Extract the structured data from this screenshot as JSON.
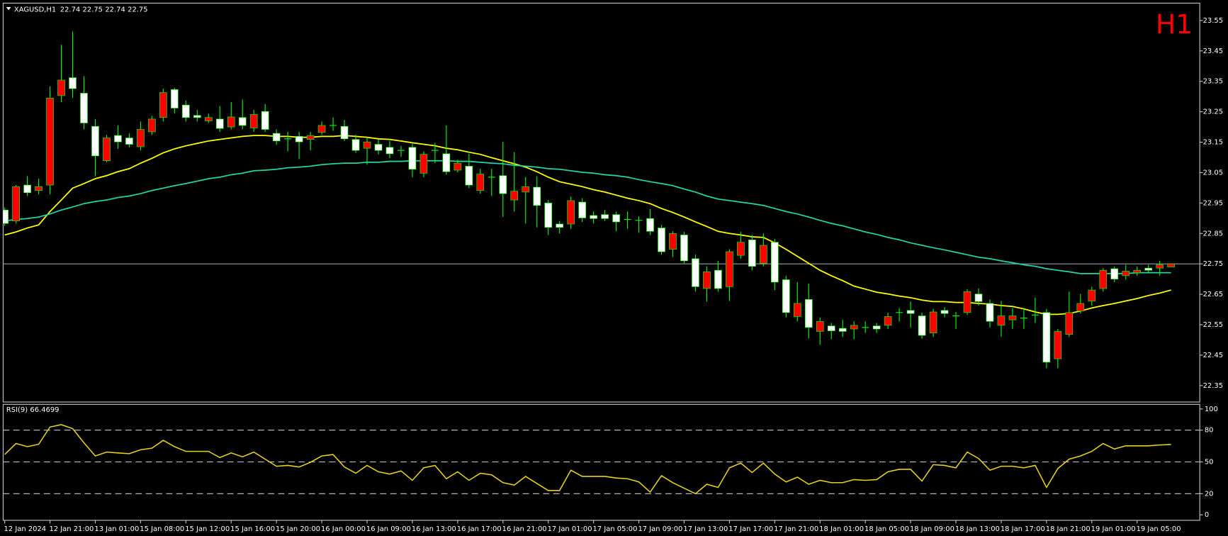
{
  "chart_data": {
    "type": "candlestick",
    "symbol": "XAGUSD,H1",
    "timeframe_label": "H1",
    "categories": [
      "12 Jan 2024",
      null,
      null,
      null,
      "12 Jan 21:00",
      null,
      null,
      null,
      "13 Jan 01:00",
      null,
      null,
      null,
      "15 Jan 08:00",
      null,
      null,
      null,
      "15 Jan 12:00",
      null,
      null,
      null,
      "15 Jan 16:00",
      null,
      null,
      null,
      "15 Jan 20:00",
      null,
      null,
      null,
      "16 Jan 00:00",
      null,
      null,
      null,
      "16 Jan 09:00",
      null,
      null,
      null,
      "16 Jan 13:00",
      null,
      null,
      null,
      "16 Jan 17:00",
      null,
      null,
      null,
      "16 Jan 21:00",
      null,
      null,
      null,
      "17 Jan 01:00",
      null,
      null,
      null,
      "17 Jan 05:00",
      null,
      null,
      null,
      "17 Jan 09:00",
      null,
      null,
      null,
      "17 Jan 13:00",
      null,
      null,
      null,
      "17 Jan 17:00",
      null,
      null,
      null,
      "17 Jan 21:00",
      null,
      null,
      null,
      "18 Jan 01:00",
      null,
      null,
      null,
      "18 Jan 05:00",
      null,
      null,
      null,
      "18 Jan 09:00",
      null,
      null,
      null,
      "18 Jan 13:00",
      null,
      null,
      null,
      "18 Jan 17:00",
      null,
      null,
      null,
      "18 Jan 21:00",
      null,
      null,
      null,
      "19 Jan 01:00",
      null,
      null,
      null,
      "19 Jan 05:00",
      null,
      null,
      null
    ],
    "open": [
      22.927,
      22.891,
      23.009,
      22.991,
      23.009,
      23.303,
      23.362,
      23.311,
      23.202,
      23.089,
      23.172,
      23.164,
      23.135,
      23.184,
      23.231,
      23.323,
      23.272,
      23.238,
      23.22,
      23.226,
      23.2,
      23.231,
      23.197,
      23.251,
      23.179,
      23.161,
      23.169,
      23.159,
      23.182,
      23.205,
      23.202,
      23.159,
      23.13,
      23.143,
      23.133,
      23.123,
      23.133,
      23.048,
      23.123,
      23.112,
      23.058,
      23.071,
      22.991,
      23.035,
      23.04,
      22.96,
      22.986,
      23.002,
      22.95,
      22.881,
      22.881,
      22.953,
      22.909,
      22.912,
      22.912,
      22.896,
      22.893,
      22.899,
      22.868,
      22.798,
      22.845,
      22.767,
      22.669,
      22.729,
      22.675,
      22.778,
      22.829,
      22.752,
      22.821,
      22.698,
      22.577,
      22.633,
      22.528,
      22.546,
      22.538,
      22.536,
      22.541,
      22.546,
      22.548,
      22.59,
      22.597,
      22.579,
      22.523,
      22.597,
      22.579,
      22.59,
      22.651,
      22.62,
      22.548,
      22.566,
      22.572,
      22.582,
      22.59,
      22.438,
      22.518,
      22.595,
      22.628,
      22.669,
      22.734,
      22.711,
      22.721,
      22.736,
      22.736,
      22.74
    ],
    "high": [
      22.935,
      23.009,
      23.038,
      23.03,
      23.334,
      23.47,
      23.514,
      23.367,
      23.226,
      23.174,
      23.205,
      23.179,
      23.218,
      23.236,
      23.326,
      23.329,
      23.287,
      23.256,
      23.244,
      23.269,
      23.282,
      23.29,
      23.256,
      23.275,
      23.192,
      23.184,
      23.184,
      23.184,
      23.218,
      23.231,
      23.223,
      23.174,
      23.166,
      23.159,
      23.154,
      23.138,
      23.146,
      23.12,
      23.148,
      23.205,
      23.092,
      23.112,
      23.063,
      23.063,
      23.151,
      23.117,
      23.035,
      23.038,
      22.96,
      22.891,
      22.971,
      22.966,
      22.922,
      22.927,
      22.922,
      22.922,
      22.906,
      22.93,
      22.878,
      22.857,
      22.855,
      22.78,
      22.742,
      22.76,
      22.798,
      22.855,
      22.845,
      22.85,
      22.832,
      22.711,
      22.69,
      22.685,
      22.574,
      22.556,
      22.566,
      22.561,
      22.561,
      22.556,
      22.59,
      22.605,
      22.626,
      22.59,
      22.602,
      22.608,
      22.592,
      22.667,
      22.669,
      22.633,
      22.628,
      22.605,
      22.602,
      22.639,
      22.602,
      22.536,
      22.659,
      22.651,
      22.675,
      22.736,
      22.742,
      22.747,
      22.742,
      22.747,
      22.76,
      22.75
    ],
    "low": [
      22.875,
      22.883,
      22.973,
      22.978,
      22.978,
      23.282,
      23.295,
      23.192,
      23.038,
      23.084,
      23.128,
      23.133,
      23.123,
      23.174,
      23.218,
      23.244,
      23.218,
      23.218,
      23.213,
      23.184,
      23.192,
      23.192,
      23.184,
      23.184,
      23.141,
      23.12,
      23.094,
      23.123,
      23.174,
      23.187,
      23.154,
      23.115,
      23.076,
      23.11,
      23.097,
      23.102,
      23.035,
      23.035,
      23.081,
      23.043,
      23.051,
      22.999,
      22.981,
      22.973,
      22.904,
      22.922,
      22.883,
      22.87,
      22.845,
      22.85,
      22.865,
      22.888,
      22.883,
      22.891,
      22.857,
      22.865,
      22.852,
      22.845,
      22.78,
      22.772,
      22.752,
      22.659,
      22.626,
      22.659,
      22.628,
      22.767,
      22.729,
      22.742,
      22.664,
      22.574,
      22.561,
      22.505,
      22.484,
      22.502,
      22.51,
      22.502,
      22.523,
      22.523,
      22.536,
      22.561,
      22.541,
      22.505,
      22.51,
      22.574,
      22.536,
      22.582,
      22.613,
      22.541,
      22.51,
      22.536,
      22.536,
      22.556,
      22.407,
      22.407,
      22.51,
      22.587,
      22.613,
      22.659,
      22.69,
      22.698,
      22.711,
      22.721,
      22.711,
      22.74
    ],
    "close": [
      22.883,
      23.004,
      22.984,
      23.004,
      23.295,
      23.354,
      23.326,
      23.213,
      23.105,
      23.164,
      23.151,
      23.143,
      23.192,
      23.226,
      23.313,
      23.262,
      23.231,
      23.231,
      23.231,
      23.195,
      23.233,
      23.205,
      23.241,
      23.192,
      23.154,
      23.161,
      23.151,
      23.172,
      23.205,
      23.205,
      23.161,
      23.123,
      23.151,
      23.123,
      23.112,
      23.123,
      23.061,
      23.11,
      23.123,
      23.053,
      23.081,
      23.009,
      23.045,
      23.035,
      22.981,
      22.989,
      23.004,
      22.942,
      22.87,
      22.87,
      22.958,
      22.901,
      22.899,
      22.899,
      22.888,
      22.896,
      22.893,
      22.857,
      22.79,
      22.85,
      22.76,
      22.675,
      22.724,
      22.669,
      22.79,
      22.821,
      22.742,
      22.811,
      22.69,
      22.59,
      22.62,
      22.541,
      22.561,
      22.53,
      22.528,
      22.548,
      22.541,
      22.536,
      22.577,
      22.59,
      22.587,
      22.515,
      22.592,
      22.587,
      22.579,
      22.659,
      22.626,
      22.561,
      22.579,
      22.579,
      22.572,
      22.582,
      22.427,
      22.528,
      22.59,
      22.62,
      22.664,
      22.729,
      22.7,
      22.726,
      22.729,
      22.729,
      22.747,
      22.75
    ],
    "up_color": "#ff0000",
    "down_color": "#ffffff",
    "wick_color": "#00ff00",
    "series": [
      {
        "color": "#ffff00",
        "values": [
          22.845,
          22.855,
          22.868,
          22.878,
          22.922,
          22.96,
          22.999,
          23.014,
          23.03,
          23.04,
          23.053,
          23.063,
          23.081,
          23.097,
          23.115,
          23.128,
          23.138,
          23.146,
          23.154,
          23.159,
          23.164,
          23.169,
          23.172,
          23.172,
          23.169,
          23.169,
          23.166,
          23.166,
          23.169,
          23.169,
          23.172,
          23.169,
          23.166,
          23.161,
          23.159,
          23.154,
          23.148,
          23.143,
          23.138,
          23.13,
          23.125,
          23.117,
          23.11,
          23.099,
          23.089,
          23.079,
          23.068,
          23.053,
          23.035,
          23.02,
          23.012,
          23.004,
          22.994,
          22.986,
          22.976,
          22.966,
          22.958,
          22.948,
          22.932,
          22.919,
          22.904,
          22.888,
          22.873,
          22.857,
          22.85,
          22.845,
          22.839,
          22.837,
          22.819,
          22.798,
          22.775,
          22.752,
          22.729,
          22.711,
          22.695,
          22.677,
          22.667,
          22.657,
          22.651,
          22.644,
          22.639,
          22.631,
          22.626,
          22.626,
          22.623,
          22.623,
          22.62,
          22.618,
          22.613,
          22.61,
          22.602,
          22.592,
          22.584,
          22.584,
          22.587,
          22.595,
          22.605,
          22.613,
          22.62,
          22.628,
          22.636,
          22.646,
          22.654,
          22.664
        ]
      },
      {
        "color": "#22d3a6",
        "values": [
          22.891,
          22.896,
          22.899,
          22.904,
          22.914,
          22.927,
          22.937,
          22.948,
          22.955,
          22.96,
          22.968,
          22.973,
          22.981,
          22.991,
          22.999,
          23.007,
          23.014,
          23.022,
          23.03,
          23.035,
          23.043,
          23.048,
          23.056,
          23.058,
          23.061,
          23.066,
          23.068,
          23.071,
          23.076,
          23.079,
          23.081,
          23.081,
          23.084,
          23.084,
          23.087,
          23.087,
          23.089,
          23.089,
          23.089,
          23.089,
          23.087,
          23.087,
          23.084,
          23.081,
          23.079,
          23.074,
          23.071,
          23.068,
          23.063,
          23.061,
          23.056,
          23.051,
          23.048,
          23.043,
          23.04,
          23.035,
          23.027,
          23.02,
          23.014,
          23.007,
          22.996,
          22.986,
          22.973,
          22.963,
          22.958,
          22.953,
          22.948,
          22.942,
          22.932,
          22.922,
          22.914,
          22.904,
          22.893,
          22.883,
          22.875,
          22.865,
          22.855,
          22.847,
          22.837,
          22.829,
          22.819,
          22.811,
          22.803,
          22.796,
          22.788,
          22.78,
          22.772,
          22.767,
          22.76,
          22.754,
          22.747,
          22.742,
          22.734,
          22.729,
          22.724,
          22.718,
          22.718,
          22.718,
          22.718,
          22.718,
          22.721,
          22.721,
          22.721,
          22.721
        ]
      }
    ],
    "ylim": [
      22.296,
      23.607
    ],
    "yticks": [
      23.55,
      23.45,
      23.35,
      23.25,
      23.15,
      23.05,
      22.95,
      22.85,
      22.75,
      22.65,
      22.55,
      22.45,
      22.35
    ],
    "rsi": {
      "label": "RSI(9)",
      "color": "#e6d21e",
      "values": [
        57.0,
        67.4,
        64.4,
        66.7,
        83.0,
        85.2,
        81.5,
        68.1,
        55.6,
        59.3,
        58.5,
        57.8,
        61.5,
        63.0,
        70.4,
        64.4,
        60.0,
        60.0,
        60.0,
        54.1,
        58.5,
        54.8,
        59.3,
        52.6,
        45.9,
        46.7,
        45.2,
        49.6,
        55.6,
        57.0,
        45.2,
        39.3,
        46.7,
        40.7,
        38.5,
        41.5,
        32.6,
        44.4,
        46.7,
        34.1,
        40.7,
        32.6,
        39.3,
        37.8,
        30.4,
        28.1,
        36.3,
        29.6,
        23.0,
        23.0,
        42.2,
        36.3,
        36.3,
        36.3,
        34.8,
        34.1,
        31.1,
        21.5,
        37.0,
        30.4,
        25.2,
        20.0,
        28.9,
        25.9,
        44.4,
        48.9,
        40.0,
        48.9,
        38.5,
        31.1,
        35.6,
        28.9,
        32.6,
        30.4,
        30.4,
        33.3,
        32.6,
        33.3,
        40.7,
        43.0,
        43.0,
        31.9,
        47.4,
        46.7,
        44.4,
        59.3,
        53.3,
        42.2,
        45.9,
        45.9,
        44.4,
        46.7,
        25.9,
        43.7,
        52.6,
        55.6,
        60.0,
        67.4,
        62.2,
        65.2,
        65.2,
        65.2,
        66.0,
        66.4699
      ],
      "ylim": [
        -5.2,
        104.4
      ],
      "yticks": [
        100,
        80,
        50,
        20,
        0
      ],
      "levels": [
        80,
        50,
        20
      ]
    }
  }
}
